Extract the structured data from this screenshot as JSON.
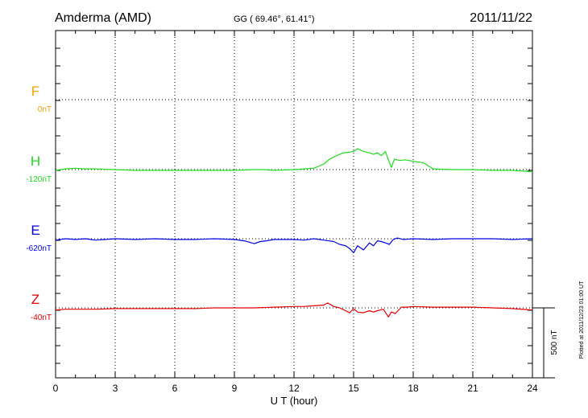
{
  "header": {
    "station": "Amderma (AMD)",
    "coords": "GG ( 69.46°,  61.41°)",
    "date": "2011/11/22"
  },
  "plotted_note": "Plotted at 2011/12/23 01:00 UT",
  "colors": {
    "F": "#f5a000",
    "H": "#1fdc1f",
    "E": "#0000e0",
    "Z": "#e00000",
    "axis": "#000000"
  },
  "chart_data": {
    "type": "line",
    "xlabel": "U T (hour)",
    "xlim": [
      0,
      24
    ],
    "xticks": [
      0,
      3,
      6,
      9,
      12,
      15,
      18,
      21,
      24
    ],
    "scale_bar": "500 nT",
    "components": [
      {
        "name": "F",
        "baseline": "0nT",
        "color": "#f5a000"
      },
      {
        "name": "H",
        "baseline": "-120nT",
        "color": "#1fdc1f"
      },
      {
        "name": "E",
        "baseline": "-620nT",
        "color": "#0000e0"
      },
      {
        "name": "Z",
        "baseline": "-40nT",
        "color": "#e00000"
      }
    ],
    "series": [
      {
        "name": "H",
        "x": [
          0,
          0.5,
          1,
          1.5,
          2,
          3,
          4,
          5,
          6,
          7,
          8,
          9,
          10,
          10.5,
          11,
          12,
          12.5,
          13,
          13.5,
          13.8,
          14,
          14.3,
          14.5,
          14.8,
          15,
          15.2,
          15.5,
          15.8,
          16,
          16.2,
          16.4,
          16.6,
          16.75,
          16.9,
          17.05,
          17.3,
          17.6,
          18,
          18.5,
          19,
          20,
          21,
          22,
          22.5,
          23,
          24
        ],
        "y": [
          -5,
          5,
          10,
          5,
          5,
          0,
          -5,
          -5,
          -5,
          -5,
          -5,
          -5,
          0,
          0,
          -5,
          0,
          5,
          10,
          40,
          75,
          90,
          110,
          120,
          125,
          130,
          150,
          130,
          120,
          110,
          120,
          100,
          130,
          70,
          15,
          75,
          65,
          70,
          60,
          50,
          5,
          0,
          0,
          -5,
          -5,
          -5,
          -15
        ]
      },
      {
        "name": "E",
        "x": [
          0,
          0.5,
          1,
          1.5,
          2,
          3,
          4,
          5,
          6,
          7,
          8,
          9,
          9.5,
          10,
          10.3,
          10.6,
          11,
          12,
          12.5,
          13,
          13.5,
          14,
          14.3,
          14.6,
          14.8,
          15,
          15.2,
          15.5,
          15.8,
          16,
          16.2,
          16.4,
          16.6,
          16.8,
          17,
          17.2,
          17.5,
          18,
          19,
          20,
          21,
          22,
          23,
          24
        ],
        "y": [
          -10,
          0,
          -5,
          0,
          -10,
          0,
          -5,
          0,
          -5,
          -5,
          0,
          -5,
          -15,
          -35,
          -20,
          -15,
          -5,
          -5,
          -10,
          0,
          -10,
          -20,
          -40,
          -50,
          -70,
          -100,
          -50,
          -80,
          -30,
          -50,
          -15,
          -20,
          -30,
          -40,
          -5,
          5,
          -5,
          0,
          -5,
          0,
          0,
          0,
          -5,
          0
        ]
      },
      {
        "name": "Z",
        "x": [
          0,
          0.5,
          1,
          2,
          3,
          4,
          5,
          6,
          7,
          8,
          9,
          10,
          11,
          12,
          12.5,
          13,
          13.5,
          13.7,
          14,
          14.3,
          14.6,
          14.8,
          15,
          15.2,
          15.5,
          15.8,
          16,
          16.2,
          16.5,
          16.75,
          16.9,
          17.1,
          17.4,
          17.7,
          18,
          19,
          20,
          21,
          22,
          23,
          24
        ],
        "y": [
          -15,
          -10,
          -10,
          -10,
          -5,
          -5,
          -5,
          -5,
          -5,
          0,
          0,
          0,
          5,
          10,
          10,
          15,
          20,
          35,
          10,
          0,
          -20,
          -35,
          -5,
          -30,
          -35,
          -20,
          -30,
          -20,
          -10,
          -65,
          -30,
          -40,
          5,
          5,
          10,
          5,
          5,
          5,
          0,
          -5,
          -15
        ]
      }
    ]
  }
}
